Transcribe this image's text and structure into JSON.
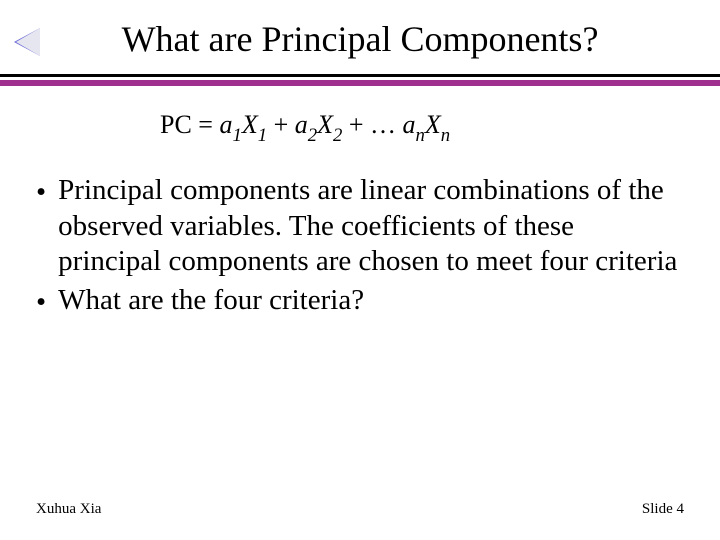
{
  "colors": {
    "nav_arrow_border": "#6a6ad6",
    "nav_arrow_fill": "#e6e6f0",
    "rule_accent": "#a03090",
    "text": "#000000",
    "background": "#ffffff"
  },
  "title": "What are Principal Components?",
  "equation": {
    "prefix": "PC = ",
    "terms": [
      {
        "a": "a",
        "asub": "1",
        "x": "X",
        "xsub": "1"
      },
      {
        "a": "a",
        "asub": "2",
        "x": "X",
        "xsub": "2"
      }
    ],
    "ellipsis": " + … ",
    "last": {
      "a": "a",
      "asub": "n",
      "x": "X",
      "xsub": "n"
    },
    "joiner": " + "
  },
  "bullets": [
    "Principal components are linear combinations of the observed variables. The coefficients of these principal components are chosen to meet four criteria",
    "What are the four criteria?"
  ],
  "footer": {
    "author": "Xuhua Xia",
    "slide_label": "Slide 4"
  }
}
